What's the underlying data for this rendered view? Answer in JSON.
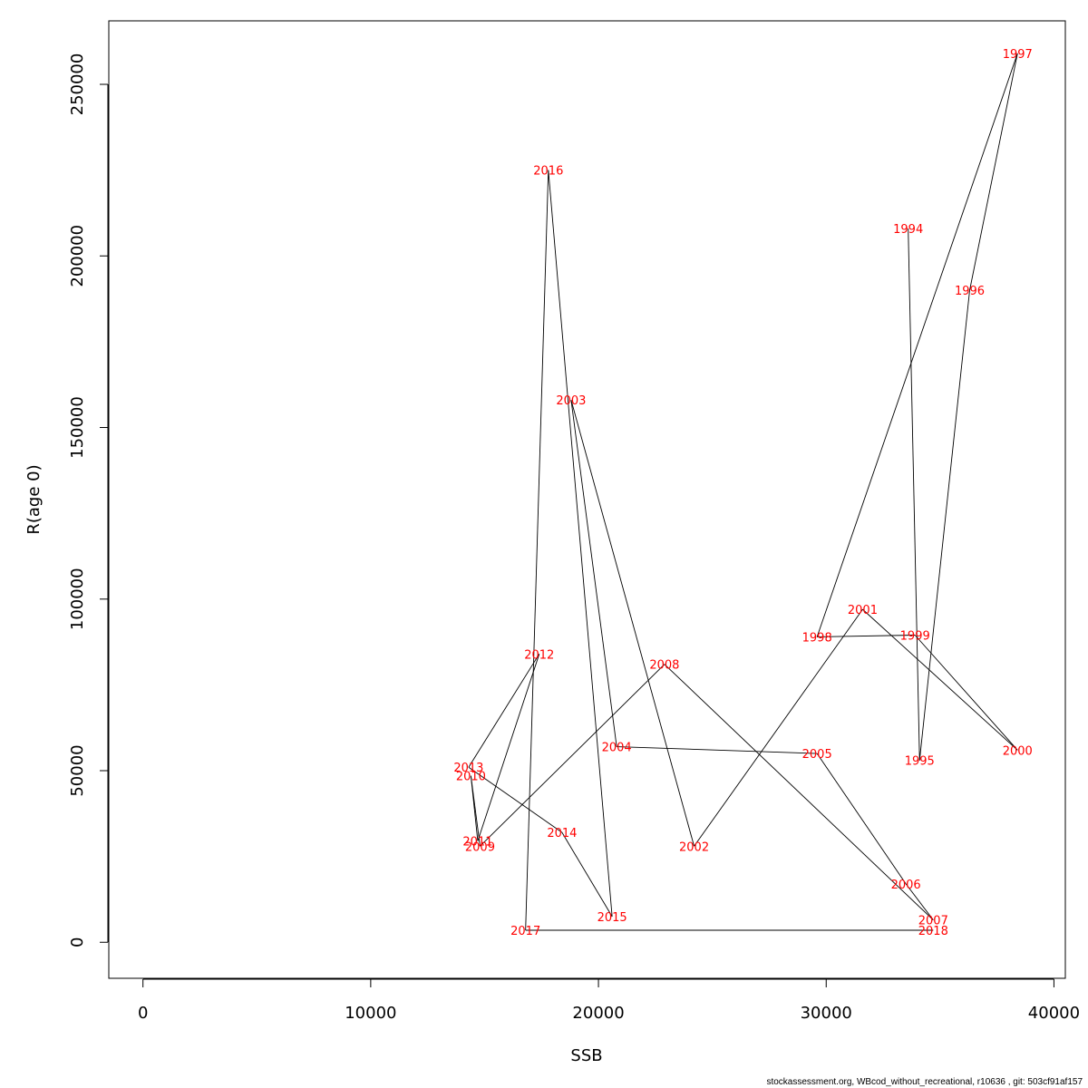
{
  "chart_data": {
    "type": "line",
    "title": "",
    "xlabel": "SSB",
    "ylabel": "R(age 0)",
    "xlim": [
      -1500,
      40500
    ],
    "ylim": [
      -10500,
      268500
    ],
    "x_ticks": [
      0,
      10000,
      20000,
      30000,
      40000
    ],
    "x_tick_labels": [
      "0",
      "10000",
      "20000",
      "30000",
      "40000"
    ],
    "y_ticks": [
      0,
      50000,
      100000,
      150000,
      200000,
      250000
    ],
    "y_tick_labels": [
      "0",
      "50000",
      "100000",
      "150000",
      "200000",
      "250000"
    ],
    "grid": false,
    "line_color": "#000000",
    "label_color": "#ff0000",
    "points": [
      {
        "year": "1994",
        "ssb": 33600,
        "r": 208000
      },
      {
        "year": "1995",
        "ssb": 34100,
        "r": 53000
      },
      {
        "year": "1996",
        "ssb": 36300,
        "r": 190000
      },
      {
        "year": "1997",
        "ssb": 38400,
        "r": 259000
      },
      {
        "year": "1998",
        "ssb": 29600,
        "r": 89000
      },
      {
        "year": "1999",
        "ssb": 33900,
        "r": 89500
      },
      {
        "year": "2000",
        "ssb": 38400,
        "r": 56000
      },
      {
        "year": "2001",
        "ssb": 31600,
        "r": 97000
      },
      {
        "year": "2002",
        "ssb": 24200,
        "r": 28000
      },
      {
        "year": "2003",
        "ssb": 18800,
        "r": 158000
      },
      {
        "year": "2004",
        "ssb": 20800,
        "r": 57000
      },
      {
        "year": "2005",
        "ssb": 29600,
        "r": 55000
      },
      {
        "year": "2006",
        "ssb": 33500,
        "r": 17000
      },
      {
        "year": "2007",
        "ssb": 34700,
        "r": 6500
      },
      {
        "year": "2008",
        "ssb": 22900,
        "r": 81000
      },
      {
        "year": "2009",
        "ssb": 14800,
        "r": 28000
      },
      {
        "year": "2010",
        "ssb": 14400,
        "r": 48500
      },
      {
        "year": "2011",
        "ssb": 14700,
        "r": 29500
      },
      {
        "year": "2012",
        "ssb": 17400,
        "r": 84000
      },
      {
        "year": "2013",
        "ssb": 14300,
        "r": 51000
      },
      {
        "year": "2014",
        "ssb": 18400,
        "r": 32000
      },
      {
        "year": "2015",
        "ssb": 20600,
        "r": 7500
      },
      {
        "year": "2016",
        "ssb": 17800,
        "r": 225000
      },
      {
        "year": "2017",
        "ssb": 16800,
        "r": 3500
      },
      {
        "year": "2018",
        "ssb": 34700,
        "r": 3500
      }
    ]
  },
  "footer": "stockassessment.org, WBcod_without_recreational, r10636 , git: 503cf91af157"
}
